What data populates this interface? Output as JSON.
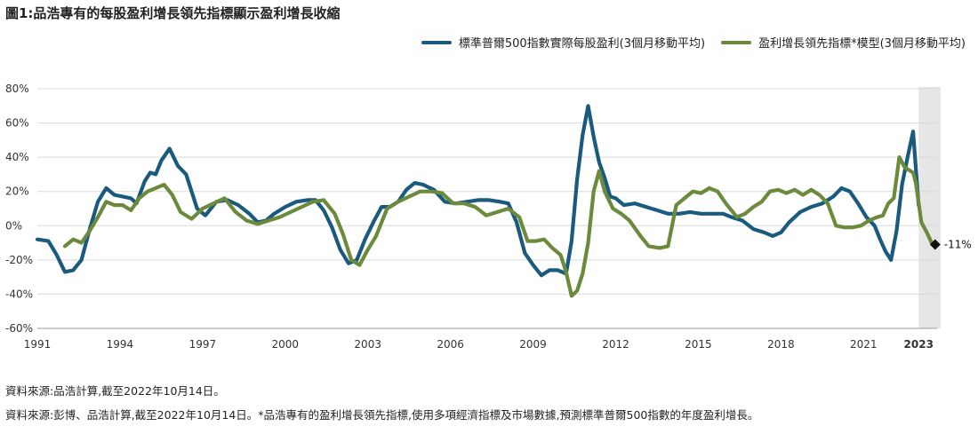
{
  "title": "圖1:品浩專有的每股盈利增長領先指標顯示盈利增長收縮",
  "legend": [
    {
      "label": "標準普爾500指數實際每股盈利(3個月移動平均)",
      "color": "#1a5a7e"
    },
    {
      "label": "盈利增長領先指標*模型(3個月移動平均)",
      "color": "#6b8a3c"
    }
  ],
  "footnotes": {
    "line1": "資料來源:品浩計算,截至2022年10月14日。",
    "line2": "資料來源:彭博、品浩計算,截至2022年10月14日。*品浩專有的盈利增長領先指標,使用多項經濟指標及市場數據,預測標準普爾500指數的年度盈利增長。"
  },
  "chart_data": {
    "type": "line",
    "title": "圖1:品浩專有的每股盈利增長領先指標顯示盈利增長收縮",
    "xlabel": "",
    "ylabel": "",
    "xlim": [
      1991,
      2023.8
    ],
    "ylim": [
      -60,
      80
    ],
    "yticks": [
      -60,
      -40,
      -20,
      0,
      20,
      40,
      60,
      80
    ],
    "ytick_labels": [
      "-60%",
      "-40%",
      "-20%",
      "0%",
      "20%",
      "40%",
      "60%",
      "80%"
    ],
    "xticks": [
      1991,
      1994,
      1997,
      2000,
      2003,
      2006,
      2009,
      2012,
      2015,
      2018,
      2021,
      2023
    ],
    "xtick_labels": [
      "1991",
      "1994",
      "1997",
      "2000",
      "2003",
      "2006",
      "2009",
      "2012",
      "2015",
      "2018",
      "2021",
      "2023"
    ],
    "xtick_bold": "2023",
    "grid": "horizontal",
    "forecast_shade": [
      2023,
      2023.8
    ],
    "annotation": {
      "x": 2023.6,
      "y": -11,
      "label": "-11%"
    },
    "colors": {
      "eps": "#1a5a7e",
      "model": "#6b8a3c",
      "shade": "#e6e6e6",
      "grid": "#d9d9d9"
    },
    "series": [
      {
        "name": "標準普爾500指數實際每股盈利(3個月移動平均)",
        "x": [
          1991,
          1991.4,
          1991.7,
          1992,
          1992.3,
          1992.6,
          1992.9,
          1993.2,
          1993.5,
          1993.8,
          1994.1,
          1994.4,
          1994.6,
          1994.9,
          1995.1,
          1995.3,
          1995.5,
          1995.8,
          1996.1,
          1996.4,
          1996.8,
          1997.1,
          1997.5,
          1997.9,
          1998.3,
          1998.7,
          1999,
          1999.3,
          1999.6,
          2000,
          2000.4,
          2000.8,
          2001.1,
          2001.4,
          2001.7,
          2002,
          2002.3,
          2002.6,
          2002.9,
          2003.2,
          2003.5,
          2003.8,
          2004.1,
          2004.4,
          2004.7,
          2005,
          2005.4,
          2005.8,
          2006.2,
          2006.6,
          2007,
          2007.4,
          2007.8,
          2008.1,
          2008.4,
          2008.7,
          2009,
          2009.3,
          2009.6,
          2009.9,
          2010.2,
          2010.4,
          2010.6,
          2010.8,
          2011,
          2011.2,
          2011.4,
          2011.6,
          2011.8,
          2012,
          2012.3,
          2012.7,
          2013.1,
          2013.5,
          2013.9,
          2014.3,
          2014.7,
          2015.1,
          2015.5,
          2015.9,
          2016.2,
          2016.6,
          2017,
          2017.4,
          2017.7,
          2018,
          2018.3,
          2018.7,
          2019.1,
          2019.5,
          2019.9,
          2020.2,
          2020.5,
          2020.8,
          2021.1,
          2021.4,
          2021.6,
          2021.8,
          2022,
          2022.2,
          2022.4,
          2022.6,
          2022.8,
          2023
        ],
        "values": [
          -8,
          -9,
          -17,
          -27,
          -26,
          -20,
          -2,
          14,
          22,
          18,
          17,
          16,
          13,
          26,
          31,
          30,
          38,
          45,
          35,
          30,
          10,
          6,
          14,
          15,
          12,
          7,
          2,
          3,
          7,
          11,
          14,
          15,
          15,
          9,
          -1,
          -14,
          -22,
          -20,
          -8,
          2,
          11,
          11,
          14,
          21,
          25,
          24,
          21,
          14,
          13,
          14,
          15,
          15,
          14,
          13,
          2,
          -16,
          -23,
          -29,
          -26,
          -26,
          -28,
          -9,
          27,
          53,
          70,
          52,
          37,
          28,
          17,
          16,
          12,
          13,
          11,
          9,
          7,
          7,
          8,
          7,
          7,
          7,
          5,
          3,
          -2,
          -4,
          -6,
          -4,
          2,
          8,
          11,
          13,
          17,
          22,
          20,
          13,
          5,
          0,
          -8,
          -15,
          -20,
          -3,
          24,
          40,
          55,
          12
        ],
        "stroke": "#1a5a7e"
      },
      {
        "name": "盈利增長領先指標*模型(3個月移動平均)",
        "x": [
          1992,
          1992.3,
          1992.6,
          1992.9,
          1993.2,
          1993.5,
          1993.8,
          1994.1,
          1994.4,
          1994.7,
          1995,
          1995.3,
          1995.6,
          1995.9,
          1996.2,
          1996.6,
          1997,
          1997.4,
          1997.8,
          1998.2,
          1998.6,
          1999,
          1999.4,
          1999.8,
          2000.2,
          2000.6,
          2001,
          2001.4,
          2001.8,
          2002.1,
          2002.4,
          2002.7,
          2003,
          2003.3,
          2003.7,
          2004.1,
          2004.5,
          2004.9,
          2005.3,
          2005.7,
          2006.1,
          2006.5,
          2006.9,
          2007.3,
          2007.7,
          2008.1,
          2008.5,
          2008.8,
          2009.1,
          2009.4,
          2009.7,
          2010,
          2010.2,
          2010.4,
          2010.6,
          2010.8,
          2011,
          2011.2,
          2011.4,
          2011.6,
          2011.9,
          2012.2,
          2012.5,
          2012.9,
          2013.2,
          2013.6,
          2013.9,
          2014.2,
          2014.5,
          2014.8,
          2015.1,
          2015.4,
          2015.7,
          2016,
          2016.4,
          2016.7,
          2017,
          2017.3,
          2017.6,
          2017.9,
          2018.2,
          2018.5,
          2018.8,
          2019.1,
          2019.4,
          2019.7,
          2020,
          2020.3,
          2020.6,
          2020.9,
          2021.2,
          2021.5,
          2021.7,
          2021.9,
          2022.1,
          2022.3,
          2022.5,
          2022.8,
          2022.9,
          2023.1,
          2023.3,
          2023.5
        ],
        "values": [
          -12,
          -8,
          -10,
          -3,
          5,
          14,
          12,
          12,
          9,
          16,
          20,
          22,
          24,
          18,
          8,
          4,
          10,
          13,
          16,
          8,
          3,
          1,
          3,
          5,
          8,
          11,
          14,
          15,
          7,
          -5,
          -20,
          -23,
          -14,
          -6,
          10,
          14,
          17,
          20,
          20,
          19,
          13,
          13,
          11,
          6,
          8,
          10,
          5,
          -9,
          -9,
          -8,
          -13,
          -17,
          -27,
          -41,
          -38,
          -28,
          -10,
          20,
          32,
          20,
          10,
          7,
          3,
          -6,
          -12,
          -13,
          -12,
          12,
          16,
          20,
          19,
          22,
          20,
          13,
          5,
          7,
          11,
          14,
          20,
          21,
          19,
          21,
          18,
          21,
          18,
          13,
          0,
          -1,
          -1,
          0,
          3,
          5,
          6,
          13,
          16,
          40,
          34,
          31,
          25,
          2,
          -4,
          -11
        ],
        "stroke": "#6b8a3c"
      }
    ]
  }
}
